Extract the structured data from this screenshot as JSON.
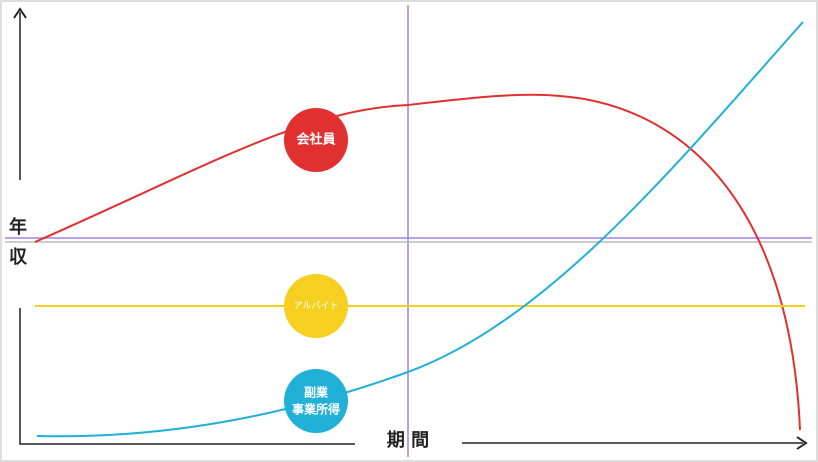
{
  "axes": {
    "y_label": [
      "年",
      "収"
    ],
    "x_label": "期 間"
  },
  "curves": [
    {
      "label": [
        "会社員"
      ]
    },
    {
      "label": [
        "アルバイト"
      ]
    },
    {
      "label": [
        "副業",
        "事業所得"
      ]
    }
  ]
}
